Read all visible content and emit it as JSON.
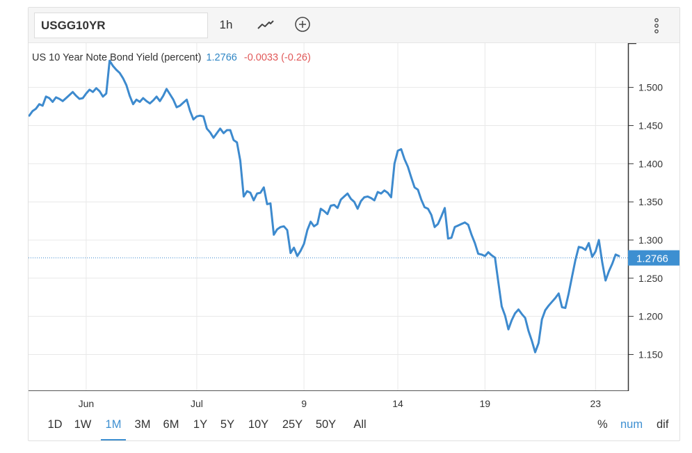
{
  "toolbar": {
    "symbol": "USGG10YR",
    "interval": "1h",
    "chart_type_icon": "line-chart-icon",
    "compare_icon": "plus-circle-icon",
    "more_icon": "vertical-ellipsis-icon"
  },
  "legend": {
    "name": "US 10 Year Note Bond Yield (percent)",
    "last": "1.2766",
    "change": "-0.0033 (-0.26)"
  },
  "ranges": [
    "1D",
    "1W",
    "1M",
    "3M",
    "6M",
    "1Y",
    "5Y",
    "10Y",
    "25Y",
    "50Y",
    "All"
  ],
  "active_range": "1M",
  "modes": [
    "%",
    "num",
    "dif"
  ],
  "active_mode": "num",
  "colors": {
    "line": "#3d8ace",
    "accent": "#3d8fd1",
    "negative": "#e15858",
    "last_label_bg": "#3d8fd1"
  },
  "chart_data": {
    "type": "line",
    "title": "US 10 Year Note Bond Yield (percent)",
    "xlabel": "",
    "ylabel": "",
    "ylim": [
      1.103,
      1.558
    ],
    "y_ticks": [
      "1.500",
      "1.450",
      "1.400",
      "1.350",
      "1.300",
      "1.250",
      "1.200",
      "1.150"
    ],
    "y_tick_values": [
      1.5,
      1.45,
      1.4,
      1.35,
      1.3,
      1.25,
      1.2,
      1.15
    ],
    "x_ticks": [
      "Jun",
      "Jul",
      "9",
      "14",
      "19",
      "23"
    ],
    "x_tick_index": [
      17,
      50,
      82,
      110,
      136,
      169
    ],
    "grid": true,
    "last_value_label": "1.2766",
    "last_value": 1.2766,
    "series": [
      {
        "name": "USGG10YR",
        "values": [
          1.463,
          1.469,
          1.472,
          1.478,
          1.476,
          1.488,
          1.486,
          1.481,
          1.487,
          1.485,
          1.482,
          1.486,
          1.49,
          1.494,
          1.489,
          1.485,
          1.486,
          1.492,
          1.497,
          1.494,
          1.499,
          1.495,
          1.488,
          1.492,
          1.535,
          1.528,
          1.523,
          1.519,
          1.512,
          1.503,
          1.489,
          1.478,
          1.484,
          1.481,
          1.486,
          1.482,
          1.479,
          1.483,
          1.488,
          1.482,
          1.489,
          1.498,
          1.491,
          1.484,
          1.474,
          1.476,
          1.48,
          1.484,
          1.469,
          1.458,
          1.462,
          1.463,
          1.462,
          1.446,
          1.441,
          1.434,
          1.44,
          1.446,
          1.44,
          1.444,
          1.444,
          1.431,
          1.428,
          1.404,
          1.357,
          1.364,
          1.362,
          1.352,
          1.361,
          1.362,
          1.369,
          1.347,
          1.348,
          1.307,
          1.314,
          1.317,
          1.318,
          1.313,
          1.283,
          1.29,
          1.279,
          1.286,
          1.295,
          1.313,
          1.324,
          1.318,
          1.321,
          1.341,
          1.338,
          1.334,
          1.345,
          1.346,
          1.342,
          1.353,
          1.357,
          1.361,
          1.354,
          1.35,
          1.341,
          1.351,
          1.356,
          1.357,
          1.355,
          1.352,
          1.363,
          1.361,
          1.365,
          1.362,
          1.356,
          1.4,
          1.417,
          1.419,
          1.406,
          1.396,
          1.382,
          1.369,
          1.366,
          1.353,
          1.343,
          1.341,
          1.333,
          1.317,
          1.321,
          1.331,
          1.342,
          1.302,
          1.303,
          1.317,
          1.319,
          1.321,
          1.323,
          1.32,
          1.307,
          1.296,
          1.282,
          1.281,
          1.279,
          1.284,
          1.28,
          1.277,
          1.245,
          1.213,
          1.201,
          1.183,
          1.195,
          1.204,
          1.209,
          1.203,
          1.198,
          1.181,
          1.168,
          1.153,
          1.165,
          1.196,
          1.208,
          1.214,
          1.219,
          1.224,
          1.23,
          1.212,
          1.211,
          1.23,
          1.252,
          1.274,
          1.291,
          1.29,
          1.287,
          1.296,
          1.278,
          1.285,
          1.3,
          1.271,
          1.247,
          1.259,
          1.269,
          1.281,
          1.279
        ]
      }
    ]
  }
}
